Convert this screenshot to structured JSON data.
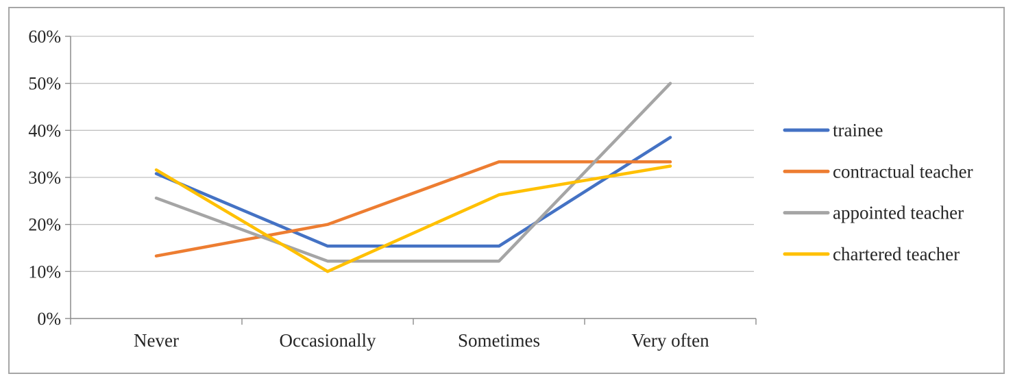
{
  "chart": {
    "background_color": "#ffffff",
    "border_color": "#a6a6a6",
    "axis_color": "#8c8c8c",
    "gridline_color": "#c0c0c0",
    "text_color": "#262626"
  },
  "chart_data": {
    "type": "line",
    "title": "",
    "xlabel": "",
    "ylabel": "",
    "categories": [
      "Never",
      "Occasionally",
      "Sometimes",
      "Very often"
    ],
    "series": [
      {
        "name": "trainee",
        "color": "#4472c4",
        "values": [
          30.8,
          15.4,
          15.4,
          38.5
        ]
      },
      {
        "name": "contractual teacher",
        "color": "#ed7d31",
        "values": [
          13.3,
          20.0,
          33.3,
          33.3
        ]
      },
      {
        "name": "appointed teacher",
        "color": "#a5a5a5",
        "values": [
          25.6,
          12.2,
          12.2,
          50.0
        ]
      },
      {
        "name": "chartered teacher",
        "color": "#ffc000",
        "values": [
          31.6,
          10.0,
          26.3,
          32.4
        ]
      }
    ],
    "ylim": [
      0,
      60
    ],
    "y_tick_step": 10,
    "y_tick_labels": [
      "0%",
      "10%",
      "20%",
      "30%",
      "40%",
      "50%",
      "60%"
    ],
    "grid": "horizontal",
    "legend_position": "right",
    "legend_labels": [
      "trainee",
      "contractual teacher",
      "appointed teacher",
      "chartered teacher"
    ]
  }
}
